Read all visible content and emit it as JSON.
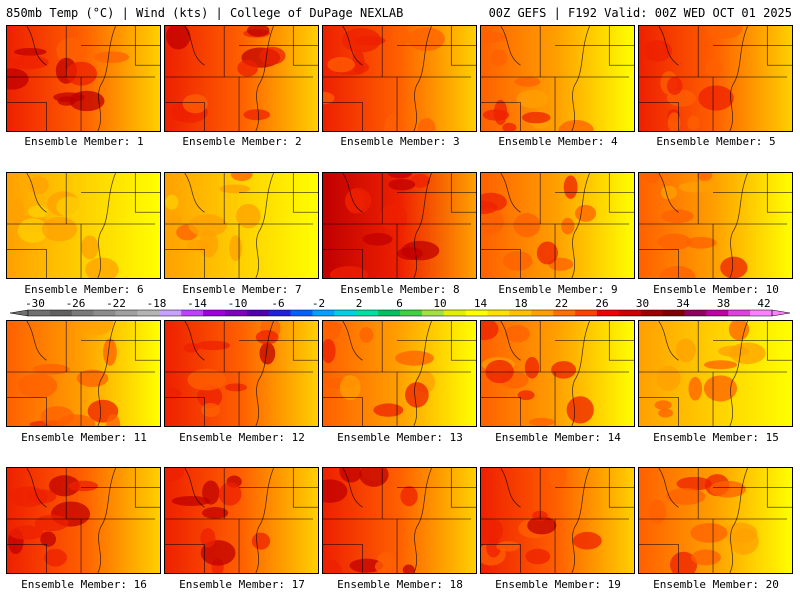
{
  "header": {
    "left": "850mb Temp (°C) | Wind (kts) | College of DuPage NEXLAB",
    "right": "00Z GEFS | F192 Valid: 00Z WED OCT 01 2025"
  },
  "panels": [
    {
      "label": "Ensemble Member: 1",
      "dom": "#ee2000",
      "warm": 0.8
    },
    {
      "label": "Ensemble Member: 2",
      "dom": "#ee2000",
      "warm": 0.85
    },
    {
      "label": "Ensemble Member: 3",
      "dom": "#ff6000",
      "warm": 0.7
    },
    {
      "label": "Ensemble Member: 4",
      "dom": "#ffa000",
      "warm": 0.6
    },
    {
      "label": "Ensemble Member: 5",
      "dom": "#ff6000",
      "warm": 0.7
    },
    {
      "label": "Ensemble Member: 6",
      "dom": "#ffc000",
      "warm": 0.4
    },
    {
      "label": "Ensemble Member: 7",
      "dom": "#ffd000",
      "warm": 0.35
    },
    {
      "label": "Ensemble Member: 8",
      "dom": "#ee2000",
      "warm": 0.9
    },
    {
      "label": "Ensemble Member: 9",
      "dom": "#ffa000",
      "warm": 0.6
    },
    {
      "label": "Ensemble Member: 10",
      "dom": "#ffa000",
      "warm": 0.55
    },
    {
      "label": "Ensemble Member: 11",
      "dom": "#ffa000",
      "warm": 0.5
    },
    {
      "label": "Ensemble Member: 12",
      "dom": "#ff6000",
      "warm": 0.75
    },
    {
      "label": "Ensemble Member: 13",
      "dom": "#ffa000",
      "warm": 0.6
    },
    {
      "label": "Ensemble Member: 14",
      "dom": "#ffa000",
      "warm": 0.6
    },
    {
      "label": "Ensemble Member: 15",
      "dom": "#ffc000",
      "warm": 0.4
    },
    {
      "label": "Ensemble Member: 16",
      "dom": "#ee2000",
      "warm": 0.85
    },
    {
      "label": "Ensemble Member: 17",
      "dom": "#ee2000",
      "warm": 0.85
    },
    {
      "label": "Ensemble Member: 18",
      "dom": "#ee2000",
      "warm": 0.8
    },
    {
      "label": "Ensemble Member: 19",
      "dom": "#ff6000",
      "warm": 0.7
    },
    {
      "label": "Ensemble Member: 20",
      "dom": "#ffa000",
      "warm": 0.6
    }
  ],
  "colorbar": {
    "labels": [
      "-30",
      "-26",
      "-22",
      "-18",
      "-14",
      "-10",
      "-6",
      "-2",
      "2",
      "6",
      "10",
      "14",
      "18",
      "22",
      "26",
      "30",
      "34",
      "38",
      "42"
    ],
    "colors": [
      "#707070",
      "#606060",
      "#7a7a7a",
      "#8c8c8c",
      "#a0a0a0",
      "#b4b4b4",
      "#c8a0ff",
      "#c040ff",
      "#a000e0",
      "#8000c0",
      "#5000b0",
      "#2020e0",
      "#0060ff",
      "#00a0ff",
      "#00d0e0",
      "#00e0a0",
      "#00c060",
      "#40d040",
      "#a0e040",
      "#e0f000",
      "#ffff00",
      "#ffe000",
      "#ffc000",
      "#ffa000",
      "#ff7000",
      "#ff4000",
      "#f00000",
      "#d00000",
      "#a00000",
      "#800000",
      "#900060",
      "#c000a0",
      "#e040e0",
      "#ff80ff"
    ]
  }
}
